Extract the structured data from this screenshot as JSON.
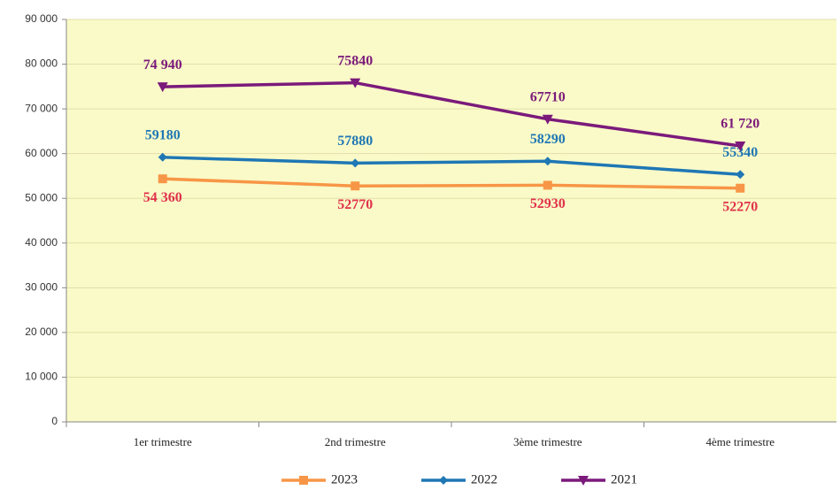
{
  "chart_data": {
    "type": "line",
    "categories": [
      "1er trimestre",
      "2nd  trimestre",
      "3ème trimestre",
      "4ème trimestre"
    ],
    "series": [
      {
        "name": "2023",
        "color": "#f79646",
        "label_color": "#e0314b",
        "marker": "square",
        "values": [
          54360,
          52770,
          52930,
          52270
        ],
        "value_labels": [
          "54 360",
          "52770",
          "52930",
          "52270"
        ]
      },
      {
        "name": "2022",
        "color": "#1f77b4",
        "label_color": "#1f77b4",
        "marker": "diamond",
        "values": [
          59180,
          57880,
          58290,
          55340
        ]
      },
      {
        "name": "2021",
        "color": "#7b1a7b",
        "label_color": "#7b1a7b",
        "marker": "triangle-down",
        "values": [
          74940,
          75840,
          67710,
          61720
        ],
        "value_labels": [
          "74 940",
          "75840",
          "67710",
          "61 720"
        ]
      }
    ],
    "ylim": [
      0,
      90000
    ],
    "yticks": [
      0,
      {
        "value": 10000,
        "label": "10 000"
      },
      {
        "value": 20000,
        "label": "20 000"
      },
      {
        "value": 30000,
        "label": "30 000"
      },
      {
        "value": 40000,
        "label": "40 000"
      },
      {
        "value": 50000,
        "label": "50 000"
      },
      {
        "value": 60000,
        "label": "60 000"
      },
      {
        "value": 70000,
        "label": "70 000"
      },
      {
        "value": 80000,
        "label": "80 000"
      },
      {
        "value": 90000,
        "label": "90 000"
      }
    ],
    "grid": true,
    "background": "#fafac8",
    "legend": "bottom"
  }
}
